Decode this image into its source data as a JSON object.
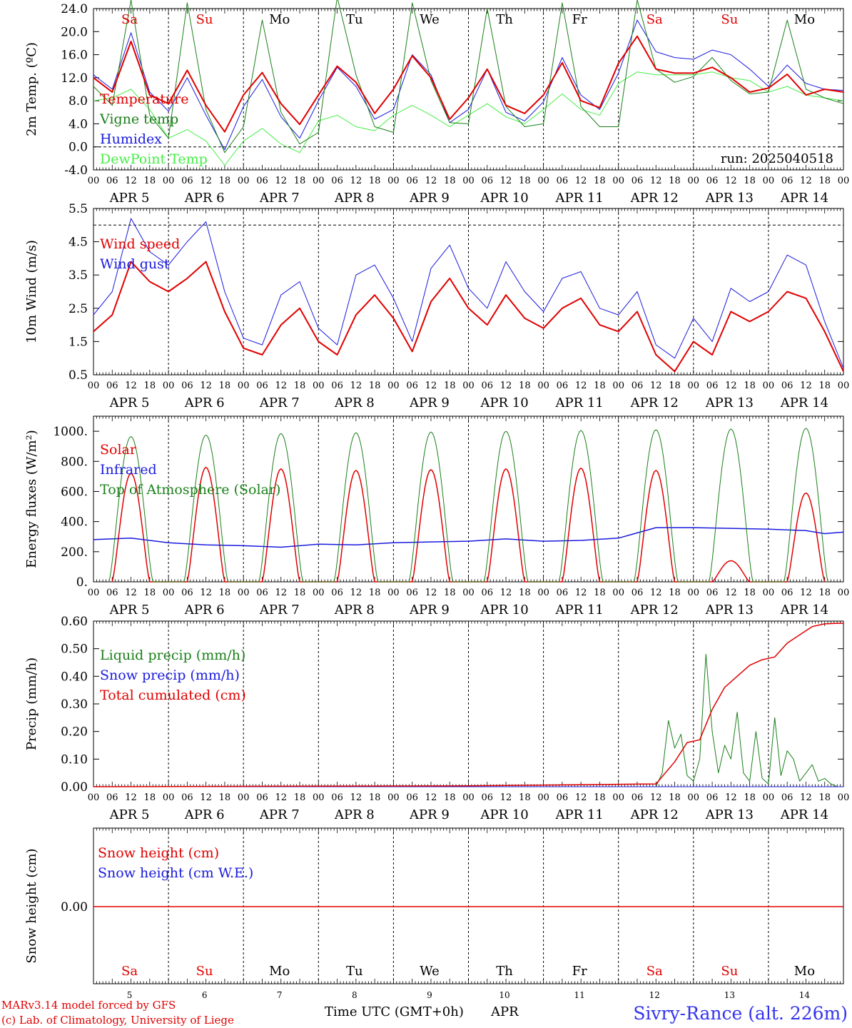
{
  "days": {
    "labels": [
      "Sa",
      "Su",
      "Mo",
      "Tu",
      "We",
      "Th",
      "Fr",
      "Sa",
      "Su",
      "Mo"
    ],
    "colors": [
      "#e00000",
      "#e00000",
      "#000000",
      "#000000",
      "#000000",
      "#000000",
      "#000000",
      "#e00000",
      "#e00000",
      "#000000"
    ],
    "date_labels": [
      "APR  5",
      "APR  6",
      "APR  7",
      "APR  8",
      "APR  9",
      "APR 10",
      "APR 11",
      "APR 12",
      "APR 13",
      "APR 14"
    ],
    "day_numbers": [
      "5",
      "6",
      "7",
      "8",
      "9",
      "10",
      "11",
      "12",
      "13",
      "14"
    ],
    "hour_labels": [
      "00",
      "06",
      "12",
      "18"
    ],
    "hour_end": "00"
  },
  "footer": {
    "model_line": "MARv3.14 model forced by GFS",
    "copyright_line": "(c) Lab. of Climatology, University of Liege",
    "xlabel": "Time UTC (GMT+0h)",
    "month": "APR",
    "station": "Sivry-Rance (alt. 226m)"
  },
  "chart_data": [
    {
      "id": "temp",
      "type": "line",
      "ylabel": "2m Temp. (ºC)",
      "ylim": [
        -4.0,
        24.0
      ],
      "yticks": [
        "-4.0",
        "0.0",
        "4.0",
        "8.0",
        "12.0",
        "16.0",
        "20.0",
        "24.0"
      ],
      "ytick_values": [
        -4,
        0,
        4,
        8,
        12,
        16,
        20,
        24
      ],
      "refline": 0.0,
      "annotation": "run: 2025040518",
      "x_unit": "hours since APR 5 00 UTC",
      "series": [
        {
          "name": "Temperature",
          "color": "#e00000",
          "width": 2,
          "x": [
            0,
            6,
            12,
            18,
            24,
            30,
            36,
            42,
            48,
            54,
            60,
            66,
            72,
            78,
            84,
            90,
            96,
            102,
            108,
            114,
            120,
            126,
            132,
            138,
            144,
            150,
            156,
            162,
            168,
            174,
            180,
            186,
            192,
            198,
            204,
            210,
            216,
            222,
            228,
            234,
            240
          ],
          "y": [
            12.0,
            9.5,
            18.3,
            9.0,
            7.5,
            13.3,
            7.2,
            2.6,
            9.0,
            12.9,
            7.5,
            3.9,
            9.0,
            14.0,
            11.2,
            5.8,
            10.0,
            15.8,
            12.0,
            4.8,
            8.5,
            13.5,
            7.2,
            5.8,
            9.0,
            14.6,
            8.0,
            6.8,
            14.5,
            19.2,
            13.5,
            12.8,
            12.8,
            13.8,
            12.0,
            9.5,
            10.2,
            12.6,
            9.0,
            10.0,
            9.5
          ]
        },
        {
          "name": "Vigne temp",
          "color": "#1a7f1a",
          "width": 1,
          "x": [
            0,
            6,
            12,
            18,
            24,
            30,
            36,
            42,
            48,
            54,
            60,
            66,
            72,
            78,
            84,
            90,
            96,
            102,
            108,
            114,
            120,
            126,
            132,
            138,
            144,
            150,
            156,
            162,
            168,
            174,
            180,
            186,
            192,
            198,
            204,
            210,
            216,
            222,
            228,
            234,
            240
          ],
          "y": [
            10.5,
            7.2,
            25.5,
            5.5,
            1.5,
            25.0,
            6.5,
            -1.0,
            3.5,
            22.0,
            6.0,
            0.5,
            2.5,
            26.0,
            12.5,
            3.5,
            2.5,
            25.0,
            11.5,
            4.2,
            4.0,
            24.0,
            7.0,
            3.5,
            4.0,
            25.0,
            7.0,
            3.5,
            3.5,
            25.5,
            13.5,
            11.2,
            12.2,
            15.5,
            11.5,
            9.2,
            9.5,
            22.0,
            10.0,
            8.5,
            7.5
          ]
        },
        {
          "name": "Humidex",
          "color": "#1a1add",
          "width": 1,
          "x": [
            0,
            6,
            12,
            18,
            24,
            30,
            36,
            42,
            48,
            54,
            60,
            66,
            72,
            78,
            84,
            90,
            96,
            102,
            108,
            114,
            120,
            126,
            132,
            138,
            144,
            150,
            156,
            162,
            168,
            174,
            180,
            186,
            192,
            198,
            204,
            210,
            216,
            222,
            228,
            234,
            240
          ],
          "y": [
            12.5,
            10.0,
            19.8,
            9.5,
            6.2,
            12.0,
            5.5,
            -0.5,
            7.0,
            11.7,
            5.2,
            1.5,
            8.0,
            13.8,
            10.5,
            4.8,
            6.5,
            16.0,
            12.5,
            4.2,
            6.5,
            13.5,
            6.0,
            4.5,
            7.8,
            15.5,
            9.0,
            6.5,
            12.8,
            22.0,
            16.5,
            15.5,
            15.2,
            16.8,
            16.0,
            13.5,
            10.5,
            14.2,
            11.0,
            10.0,
            9.8
          ]
        },
        {
          "name": "DewPoint Temp",
          "color": "#44ee44",
          "width": 1,
          "x": [
            0,
            6,
            12,
            18,
            24,
            30,
            36,
            42,
            48,
            54,
            60,
            66,
            72,
            78,
            84,
            90,
            96,
            102,
            108,
            114,
            120,
            126,
            132,
            138,
            144,
            150,
            156,
            162,
            168,
            174,
            180,
            186,
            192,
            198,
            204,
            210,
            216,
            222,
            228,
            234,
            240
          ],
          "y": [
            8.0,
            8.5,
            10.0,
            6.5,
            1.5,
            3.0,
            1.0,
            -3.2,
            1.0,
            3.2,
            0.5,
            -1.0,
            4.5,
            5.5,
            3.5,
            2.8,
            5.5,
            7.2,
            5.5,
            3.5,
            5.5,
            7.5,
            5.2,
            4.0,
            6.5,
            9.2,
            6.5,
            5.5,
            11.0,
            13.0,
            12.5,
            12.5,
            12.5,
            13.0,
            12.0,
            11.5,
            9.5,
            10.5,
            9.0,
            8.5,
            8.0
          ]
        }
      ]
    },
    {
      "id": "wind",
      "type": "line",
      "ylabel": "10m Wind (m/s)",
      "ylim": [
        0.5,
        5.5
      ],
      "yticks": [
        "0.5",
        "1.5",
        "2.5",
        "3.5",
        "4.5",
        "5.5"
      ],
      "ytick_values": [
        0.5,
        1.5,
        2.5,
        3.5,
        4.5,
        5.5
      ],
      "refline": 5.0,
      "x_unit": "hours since APR 5 00 UTC",
      "series": [
        {
          "name": "Wind speed",
          "color": "#e00000",
          "width": 2,
          "x": [
            0,
            6,
            12,
            18,
            24,
            30,
            36,
            42,
            48,
            54,
            60,
            66,
            72,
            78,
            84,
            90,
            96,
            102,
            108,
            114,
            120,
            126,
            132,
            138,
            144,
            150,
            156,
            162,
            168,
            174,
            180,
            186,
            192,
            198,
            204,
            210,
            216,
            222,
            228,
            234,
            240
          ],
          "y": [
            1.8,
            2.3,
            3.9,
            3.3,
            3.0,
            3.4,
            3.9,
            2.4,
            1.3,
            1.1,
            2.0,
            2.5,
            1.5,
            1.1,
            2.3,
            2.9,
            2.2,
            1.2,
            2.7,
            3.4,
            2.5,
            2.0,
            2.9,
            2.2,
            1.9,
            2.5,
            2.8,
            2.0,
            1.8,
            2.4,
            1.1,
            0.6,
            1.5,
            1.1,
            2.4,
            2.1,
            2.4,
            3.0,
            2.8,
            1.8,
            0.6
          ]
        },
        {
          "name": "Wind gust",
          "color": "#1a1add",
          "width": 1,
          "x": [
            0,
            6,
            12,
            18,
            24,
            30,
            36,
            42,
            48,
            54,
            60,
            66,
            72,
            78,
            84,
            90,
            96,
            102,
            108,
            114,
            120,
            126,
            132,
            138,
            144,
            150,
            156,
            162,
            168,
            174,
            180,
            186,
            192,
            198,
            204,
            210,
            216,
            222,
            228,
            234,
            240
          ],
          "y": [
            2.3,
            3.0,
            5.2,
            4.2,
            3.8,
            4.5,
            5.1,
            3.0,
            1.6,
            1.4,
            2.9,
            3.3,
            1.9,
            1.4,
            3.5,
            3.8,
            2.8,
            1.5,
            3.7,
            4.4,
            3.1,
            2.5,
            3.9,
            3.0,
            2.4,
            3.4,
            3.6,
            2.5,
            2.3,
            3.0,
            1.4,
            1.0,
            2.2,
            1.5,
            3.1,
            2.7,
            3.0,
            4.1,
            3.8,
            2.1,
            0.7
          ]
        }
      ]
    },
    {
      "id": "flux",
      "type": "line",
      "ylabel": "Energy fluxes (W/m²)",
      "ylim": [
        0,
        1100
      ],
      "yticks": [
        "0.",
        "200.",
        "400.",
        "600.",
        "800.",
        "1000."
      ],
      "ytick_values": [
        0,
        200,
        400,
        600,
        800,
        1000
      ],
      "x_unit": "hours since APR 5 00 UTC",
      "daily_peaks": {
        "solar": [
          720,
          760,
          750,
          740,
          745,
          750,
          755,
          740,
          140,
          590
        ],
        "top_of_atmosphere": [
          965,
          975,
          985,
          990,
          995,
          1000,
          1005,
          1010,
          1015,
          1020
        ]
      },
      "series": [
        {
          "name": "Solar",
          "color": "#e00000",
          "width": 1.5,
          "daily_peak_key": "solar"
        },
        {
          "name": "Infrared",
          "color": "#1a1add",
          "width": 1.5,
          "x": [
            0,
            12,
            24,
            36,
            48,
            60,
            72,
            84,
            96,
            108,
            120,
            132,
            144,
            156,
            168,
            180,
            192,
            204,
            216,
            228,
            234,
            240
          ],
          "y": [
            280,
            290,
            260,
            245,
            240,
            230,
            250,
            245,
            260,
            265,
            270,
            285,
            270,
            275,
            290,
            360,
            360,
            355,
            350,
            340,
            320,
            330
          ]
        },
        {
          "name": "Top of Atmosphere (Solar)",
          "color": "#1a7f1a",
          "width": 1,
          "daily_peak_key": "top_of_atmosphere"
        }
      ]
    },
    {
      "id": "precip",
      "type": "line",
      "ylabel": "Precip (mm/h)",
      "ylim": [
        0.0,
        0.6
      ],
      "yticks": [
        "0.00",
        "0.10",
        "0.20",
        "0.30",
        "0.40",
        "0.50",
        "0.60"
      ],
      "ytick_values": [
        0,
        0.1,
        0.2,
        0.3,
        0.4,
        0.5,
        0.6
      ],
      "x_unit": "hours since APR 5 00 UTC",
      "series": [
        {
          "name": "Liquid precip (mm/h)",
          "color": "#1a7f1a",
          "width": 1,
          "x": [
            0,
            180,
            182,
            184,
            186,
            188,
            190,
            192,
            194,
            196,
            198,
            200,
            202,
            204,
            206,
            208,
            210,
            212,
            214,
            216,
            218,
            220,
            222,
            224,
            226,
            228,
            230,
            232,
            234,
            236,
            238,
            240
          ],
          "y": [
            0,
            0,
            0.05,
            0.24,
            0.14,
            0.19,
            0.04,
            0.02,
            0.1,
            0.48,
            0.2,
            0.05,
            0.15,
            0.1,
            0.27,
            0.05,
            0.02,
            0.2,
            0.03,
            0.01,
            0.25,
            0.04,
            0.13,
            0.1,
            0.02,
            0.05,
            0.08,
            0.02,
            0.03,
            0.01,
            0.0,
            0.0
          ]
        },
        {
          "name": "Snow precip (mm/h)",
          "color": "#1a1add",
          "width": 1,
          "x": [
            0,
            240
          ],
          "y": [
            0,
            0
          ]
        },
        {
          "name": "Total cumulated (cm)",
          "color": "#e00000",
          "width": 1.5,
          "x": [
            0,
            120,
            180,
            186,
            190,
            194,
            198,
            202,
            206,
            210,
            214,
            218,
            222,
            226,
            230,
            234,
            238,
            240
          ],
          "y": [
            0,
            0.003,
            0.01,
            0.09,
            0.16,
            0.17,
            0.28,
            0.36,
            0.4,
            0.44,
            0.46,
            0.47,
            0.52,
            0.55,
            0.58,
            0.59,
            0.592,
            0.592
          ]
        }
      ]
    },
    {
      "id": "snow",
      "type": "line",
      "ylabel": "Snow height (cm)",
      "yticks": [
        "0.00"
      ],
      "ytick_values": [
        0
      ],
      "x_unit": "hours since APR 5 00 UTC",
      "series": [
        {
          "name": "Snow height (cm)",
          "color": "#e00000",
          "width": 1.5,
          "x": [
            0,
            240
          ],
          "y": [
            0,
            0
          ]
        },
        {
          "name": "Snow height (cm W.E.)",
          "color": "#1a1add",
          "width": 1,
          "x": [
            0,
            240
          ],
          "y": [
            0,
            0
          ]
        }
      ]
    }
  ]
}
